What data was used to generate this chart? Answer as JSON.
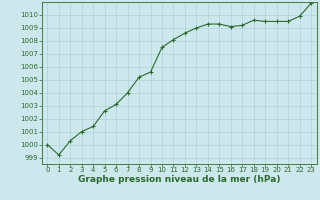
{
  "x": [
    0,
    1,
    2,
    3,
    4,
    5,
    6,
    7,
    8,
    9,
    10,
    11,
    12,
    13,
    14,
    15,
    16,
    17,
    18,
    19,
    20,
    21,
    22,
    23
  ],
  "y": [
    1000.0,
    999.2,
    1000.3,
    1001.0,
    1001.4,
    1002.6,
    1003.1,
    1004.0,
    1005.2,
    1005.6,
    1007.5,
    1008.1,
    1008.6,
    1009.0,
    1009.3,
    1009.3,
    1009.1,
    1009.2,
    1009.6,
    1009.5,
    1009.5,
    1009.5,
    1009.9,
    1010.9
  ],
  "line_color": "#2d6a2d",
  "marker_color": "#2d6a2d",
  "bg_color": "#cce8ec",
  "grid_color": "#a8cdd4",
  "axis_color": "#2d6a2d",
  "xlabel": "Graphe pression niveau de la mer (hPa)",
  "ylim": [
    998.5,
    1011.0
  ],
  "xlim": [
    -0.5,
    23.5
  ],
  "yticks": [
    999,
    1000,
    1001,
    1002,
    1003,
    1004,
    1005,
    1006,
    1007,
    1008,
    1009,
    1010
  ],
  "xticks": [
    0,
    1,
    2,
    3,
    4,
    5,
    6,
    7,
    8,
    9,
    10,
    11,
    12,
    13,
    14,
    15,
    16,
    17,
    18,
    19,
    20,
    21,
    22,
    23
  ],
  "xlabel_fontsize": 6.5,
  "tick_fontsize": 5.0
}
